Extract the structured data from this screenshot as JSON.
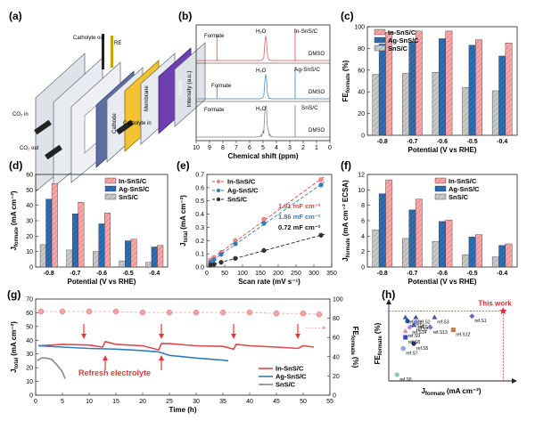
{
  "panels": {
    "a": {
      "label": "(a)",
      "annotations": [
        "Catholyte out",
        "RE",
        "Catholyte in",
        "CO₂ in",
        "CO₂ out",
        "Cathode",
        "Membrane",
        "Anode"
      ]
    },
    "b": {
      "label": "(b)",
      "xlabel": "Chemical shift (ppm)",
      "ylabel": "Intensity (a.u.)",
      "xticks": [
        "10",
        "9",
        "8",
        "7",
        "6",
        "5",
        "4",
        "3",
        "2",
        "1",
        "0"
      ],
      "spectra": [
        {
          "name": "In-SnS/C",
          "color": "#e0474c"
        },
        {
          "name": "Ag-SnS/C",
          "color": "#2f7dbb"
        },
        {
          "name": "SnS/C",
          "color": "#777777"
        }
      ],
      "peak_labels": {
        "formate": "Formate",
        "water": "H₂O",
        "dmso": "DMSO"
      }
    },
    "c": {
      "label": "(c)",
      "ylabel": "FE",
      "ylabel_sub": "formate",
      "ylabel_unit": "(%)",
      "xlabel": "Potential (V vs RHE)"
    },
    "d": {
      "label": "(d)",
      "ylabel": "J",
      "ylabel_sub": "formate",
      "ylabel_unit": "(mA cm⁻²)",
      "xlabel": "Potential (V vs RHE)"
    },
    "e": {
      "label": "(e)",
      "ylabel": "J",
      "ylabel_sub": "total",
      "ylabel_unit": "(mA cm⁻²)",
      "xlabel": "Scan rate (mV s⁻¹)",
      "capacitance": [
        "1.91 mF cm⁻²",
        "1.86 mF cm⁻²",
        "0.72 mF cm⁻²"
      ]
    },
    "f": {
      "label": "(f)",
      "ylabel": "J",
      "ylabel_sub": "formate",
      "ylabel_unit": "(mA cm⁻² ECSA)",
      "xlabel": "Potential (V vs RHE)"
    },
    "g": {
      "label": "(g)",
      "ylabel_left": "J",
      "ylabel_left_sub": "total",
      "ylabel_left_unit": "(mA cm⁻²)",
      "ylabel_right": "FE",
      "ylabel_right_sub": "formate",
      "ylabel_right_unit": "(%)",
      "xlabel": "Time (h)",
      "annotation": "Refresh electrolyte"
    },
    "h": {
      "label": "(h)",
      "ylabel": "FE",
      "ylabel_sub": "formate",
      "ylabel_unit": "(%)",
      "xlabel": "J",
      "xlabel_sub": "formate",
      "xlabel_unit": "(mA cm⁻²)",
      "this_work_label": "This work"
    }
  },
  "colors": {
    "in": "#f0898a",
    "ag": "#2f6fb5",
    "snsc": "#b7b7b7",
    "red_line": "#e0474c",
    "blue_line": "#2f7dbb",
    "black_line": "#222222",
    "refresh": "#e53935",
    "fe_pink": "#f3a3a3"
  },
  "series_names": [
    "In-SnS/C",
    "Ag-SnS/C",
    "SnS/C"
  ],
  "chart_data": [
    {
      "id": "c",
      "type": "bar",
      "categories": [
        "-0.8",
        "-0.7",
        "-0.6",
        "-0.5",
        "-0.4"
      ],
      "series": [
        {
          "name": "SnS/C",
          "values": [
            56,
            57,
            58,
            44,
            41
          ]
        },
        {
          "name": "Ag-SnS/C",
          "values": [
            84,
            86,
            89,
            83,
            73
          ]
        },
        {
          "name": "In-SnS/C",
          "values": [
            95,
            96,
            96,
            88,
            85
          ]
        }
      ],
      "ylim": [
        0,
        100
      ],
      "yticks": [
        0,
        20,
        40,
        60,
        80,
        100
      ]
    },
    {
      "id": "d",
      "type": "bar",
      "categories": [
        "-0.8",
        "-0.7",
        "-0.6",
        "-0.5",
        "-0.4"
      ],
      "series": [
        {
          "name": "SnS/C",
          "values": [
            14.5,
            11,
            10,
            4,
            3
          ]
        },
        {
          "name": "Ag-SnS/C",
          "values": [
            44,
            34.5,
            28,
            17,
            13
          ]
        },
        {
          "name": "In-SnS/C",
          "values": [
            54,
            42,
            35,
            18,
            14
          ]
        }
      ],
      "ylim": [
        0,
        60
      ],
      "yticks": [
        0,
        10,
        20,
        30,
        40,
        50,
        60
      ]
    },
    {
      "id": "e",
      "type": "scatter",
      "x": [
        10,
        20,
        40,
        80,
        160,
        320
      ],
      "series": [
        {
          "name": "In-SnS/C",
          "values": [
            0.052,
            0.072,
            0.11,
            0.2,
            0.36,
            0.66
          ]
        },
        {
          "name": "Ag-SnS/C",
          "values": [
            0.035,
            0.055,
            0.095,
            0.175,
            0.33,
            0.62
          ]
        },
        {
          "name": "SnS/C",
          "values": [
            0.015,
            0.02,
            0.035,
            0.065,
            0.125,
            0.24
          ]
        }
      ],
      "xlim": [
        0,
        350
      ],
      "ylim": [
        0,
        0.7
      ],
      "xticks": [
        0,
        50,
        100,
        150,
        200,
        250,
        300,
        350
      ],
      "yticks": [
        0.0,
        0.1,
        0.2,
        0.3,
        0.4,
        0.5,
        0.6,
        0.7
      ]
    },
    {
      "id": "f",
      "type": "bar",
      "categories": [
        "-0.8",
        "-0.7",
        "-0.6",
        "-0.5",
        "-0.4"
      ],
      "series": [
        {
          "name": "SnS/C",
          "values": [
            4.8,
            3.7,
            3.3,
            1.6,
            1.3
          ]
        },
        {
          "name": "Ag-SnS/C",
          "values": [
            9.5,
            7.4,
            5.9,
            3.9,
            2.8
          ]
        },
        {
          "name": "In-SnS/C",
          "values": [
            11.3,
            8.8,
            6.1,
            4.2,
            3.0
          ]
        }
      ],
      "ylim": [
        0,
        12
      ],
      "yticks": [
        0,
        2,
        4,
        6,
        8,
        10,
        12
      ]
    },
    {
      "id": "g",
      "type": "line",
      "xlim": [
        0,
        55
      ],
      "ylim": [
        0,
        70
      ],
      "y2lim": [
        0,
        100
      ],
      "xticks": [
        0,
        5,
        10,
        15,
        20,
        25,
        30,
        35,
        40,
        45,
        50,
        55
      ],
      "yticks": [
        0,
        10,
        20,
        30,
        40,
        50,
        60,
        70
      ],
      "y2ticks": [
        0,
        20,
        40,
        60,
        80,
        100
      ],
      "series": [
        {
          "name": "In-SnS/C",
          "x": [
            0.5,
            5,
            10,
            12.5,
            13,
            15,
            20,
            23,
            23.5,
            25,
            30,
            35,
            37,
            37.5,
            40,
            45,
            49,
            50,
            52
          ],
          "y": [
            36,
            37,
            36.5,
            35,
            39,
            37,
            36,
            33,
            37.5,
            37.5,
            36,
            35.5,
            33.5,
            37,
            36,
            35,
            34,
            36,
            35
          ]
        },
        {
          "name": "Ag-SnS/C",
          "x": [
            0.5,
            5,
            10,
            15,
            20,
            23,
            25,
            30,
            35,
            36
          ],
          "y": [
            36,
            35,
            34,
            33.5,
            32.5,
            31.5,
            29,
            27,
            25.5,
            25
          ]
        },
        {
          "name": "SnS/C",
          "x": [
            0.3,
            1,
            2,
            3,
            4,
            5,
            5.5
          ],
          "y": [
            25,
            27,
            27,
            26,
            22,
            17,
            12
          ]
        },
        {
          "name": "FE formate (In-SnS/C)",
          "x": [
            1,
            5,
            10,
            15,
            20,
            25,
            30,
            35,
            40,
            45,
            50,
            53
          ],
          "y": [
            87,
            87,
            87,
            87,
            86,
            86,
            86,
            86,
            86,
            85,
            85,
            84
          ]
        }
      ],
      "refresh_times": [
        9,
        13,
        23.5,
        37,
        49
      ]
    },
    {
      "id": "h",
      "type": "scatter",
      "xlim": [
        0,
        60
      ],
      "ylim": [
        40,
        100
      ],
      "xticks": [
        0,
        20,
        40,
        60
      ],
      "yticks": [
        40,
        60,
        80,
        100
      ],
      "points": [
        {
          "label": "ref.S11",
          "x": 8,
          "y": 91,
          "shape": "triangle",
          "color": "#4452a7"
        },
        {
          "label": "ref.S2",
          "x": 13,
          "y": 91,
          "shape": "triangle",
          "color": "#4452a7"
        },
        {
          "label": "ref.S3",
          "x": 22,
          "y": 91,
          "shape": "triangle",
          "color": "#4452a7"
        },
        {
          "label": "ref.S1",
          "x": 40,
          "y": 92,
          "shape": "diamond",
          "color": "#6a66c4"
        },
        {
          "label": "ref.S10",
          "x": 9,
          "y": 88,
          "shape": "circle",
          "color": "#1f4e8c"
        },
        {
          "label": "ref.S4",
          "x": 13,
          "y": 87,
          "shape": "hexagon",
          "color": "#7a8fc9"
        },
        {
          "label": "ref.S7",
          "x": 12,
          "y": 85,
          "shape": "triangle",
          "color": "#4452a7"
        },
        {
          "label": "ref.S14",
          "x": 10,
          "y": 83,
          "shape": "diamond",
          "color": "#a68ad8"
        },
        {
          "label": "ref.S13",
          "x": 20,
          "y": 83,
          "shape": "diamond",
          "color": "#8b6bd1"
        },
        {
          "label": "ref.S9",
          "x": 8,
          "y": 80,
          "shape": "triangle",
          "color": "#e58ab4"
        },
        {
          "label": "ref.S12",
          "x": 31,
          "y": 81,
          "shape": "square",
          "color": "#c97a4b"
        },
        {
          "label": "ref.S8",
          "x": 8,
          "y": 75,
          "shape": "square",
          "color": "#3b4ca8"
        },
        {
          "label": "ref.S5",
          "x": 12,
          "y": 70,
          "shape": "circle",
          "color": "#1f2f70"
        },
        {
          "label": "ref.S7",
          "x": 7,
          "y": 66,
          "shape": "hexagon",
          "color": "#90a9d8"
        },
        {
          "label": "ref.S6",
          "x": 4,
          "y": 45,
          "shape": "circle",
          "color": "#8fd0a8"
        },
        {
          "label": "This work",
          "x": 55,
          "y": 96,
          "shape": "star",
          "color": "#d32f2f"
        }
      ]
    }
  ]
}
